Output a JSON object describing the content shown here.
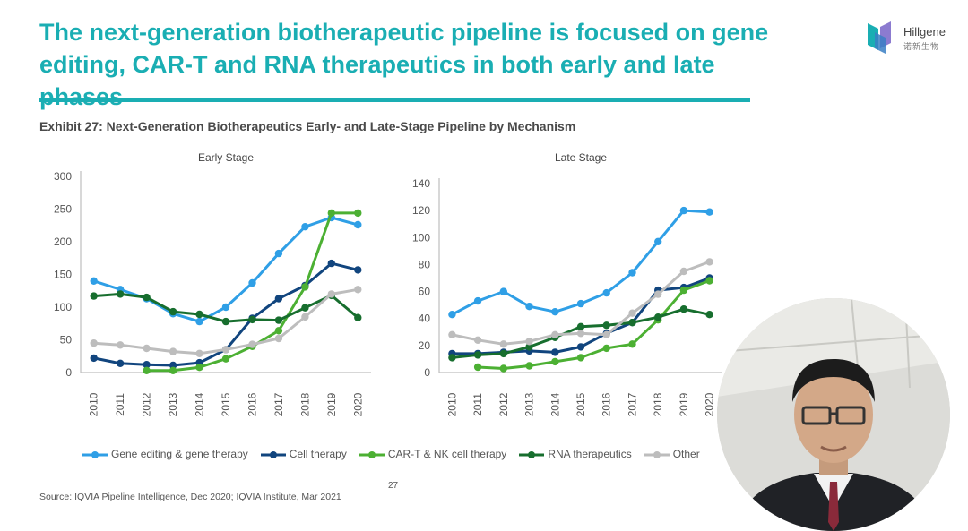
{
  "slide": {
    "title": "The next-generation biotherapeutic pipeline is focused on gene editing, CAR-T and RNA therapeutics in both early and late phases",
    "exhibit": "Exhibit 27: Next-Generation Biotherapeutics Early- and Late-Stage Pipeline by Mechanism",
    "source": "Source: IQVIA Pipeline Intelligence, Dec 2020; IQVIA Institute, Mar 2021",
    "page_number": "27",
    "logo_name": "Hillgene",
    "logo_sub": "诺新生物"
  },
  "colors": {
    "title": "#1aaeb3",
    "gene": "#2f9fe6",
    "cell": "#11457e",
    "cart": "#4cb033",
    "rna": "#176e2e",
    "other": "#bdbdbd"
  },
  "legend": [
    {
      "label": "Gene editing & gene therapy",
      "color": "#2f9fe6"
    },
    {
      "label": "Cell therapy",
      "color": "#11457e"
    },
    {
      "label": "CAR-T & NK cell therapy",
      "color": "#4cb033"
    },
    {
      "label": "RNA therapeutics",
      "color": "#176e2e"
    },
    {
      "label": "Other",
      "color": "#bdbdbd"
    }
  ],
  "chart_data": [
    {
      "type": "line",
      "title": "Early Stage",
      "x": [
        "2010",
        "2011",
        "2012",
        "2013",
        "2014",
        "2015",
        "2016",
        "2017",
        "2018",
        "2019",
        "2020"
      ],
      "ylim": [
        0,
        300
      ],
      "yticks": [
        0,
        50,
        100,
        150,
        200,
        250,
        300
      ],
      "series": [
        {
          "name": "Gene editing & gene therapy",
          "key": "gene",
          "values": [
            140,
            127,
            113,
            90,
            78,
            100,
            137,
            182,
            223,
            237,
            226
          ]
        },
        {
          "name": "Cell therapy",
          "key": "cell",
          "values": [
            22,
            14,
            12,
            11,
            15,
            35,
            83,
            113,
            133,
            167,
            157
          ]
        },
        {
          "name": "CAR-T & NK cell therapy",
          "key": "cart",
          "values": [
            null,
            null,
            3,
            3,
            8,
            21,
            40,
            64,
            131,
            244,
            244
          ]
        },
        {
          "name": "RNA therapeutics",
          "key": "rna",
          "values": [
            117,
            120,
            115,
            93,
            89,
            78,
            81,
            80,
            99,
            118,
            84
          ]
        },
        {
          "name": "Other",
          "key": "other",
          "values": [
            45,
            42,
            37,
            32,
            29,
            35,
            43,
            52,
            85,
            120,
            127
          ]
        }
      ]
    },
    {
      "type": "line",
      "title": "Late Stage",
      "x": [
        "2010",
        "2011",
        "2012",
        "2013",
        "2014",
        "2015",
        "2016",
        "2017",
        "2018",
        "2019",
        "2020"
      ],
      "ylim": [
        0,
        140
      ],
      "yticks": [
        0,
        20,
        40,
        60,
        80,
        100,
        120,
        140
      ],
      "series": [
        {
          "name": "Gene editing & gene therapy",
          "key": "gene",
          "values": [
            43,
            53,
            60,
            49,
            45,
            51,
            59,
            74,
            97,
            120,
            119
          ]
        },
        {
          "name": "Cell therapy",
          "key": "cell",
          "values": [
            14,
            14,
            15,
            16,
            15,
            19,
            29,
            37,
            61,
            63,
            70
          ]
        },
        {
          "name": "CAR-T & NK cell therapy",
          "key": "cart",
          "values": [
            null,
            4,
            3,
            5,
            8,
            11,
            18,
            21,
            39,
            61,
            68
          ]
        },
        {
          "name": "RNA therapeutics",
          "key": "rna",
          "values": [
            11,
            13,
            14,
            19,
            26,
            34,
            35,
            37,
            41,
            47,
            43
          ]
        },
        {
          "name": "Other",
          "key": "other",
          "values": [
            28,
            24,
            21,
            23,
            28,
            29,
            28,
            44,
            58,
            75,
            82
          ]
        }
      ]
    }
  ]
}
